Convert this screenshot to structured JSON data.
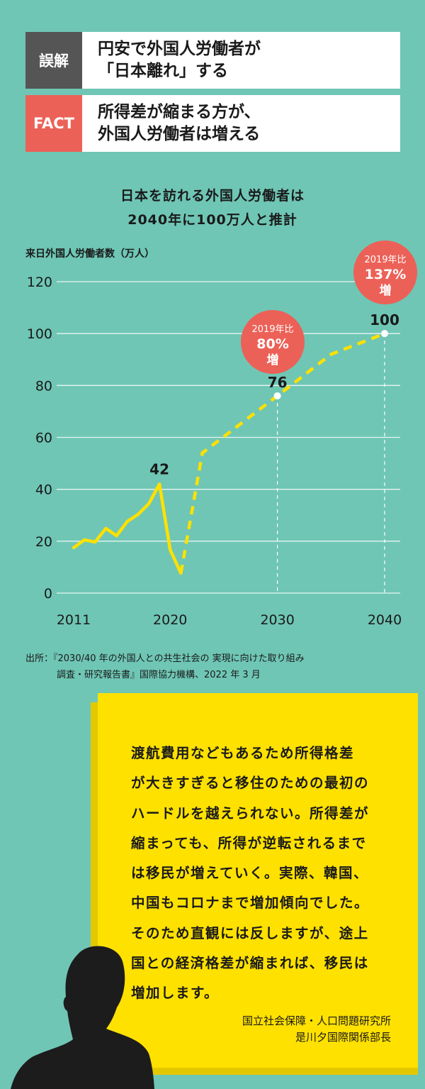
{
  "myth": {
    "tag": "誤解",
    "text1": "円安で外国人労働者が",
    "text2": "「日本離れ」する"
  },
  "fact": {
    "tag": "FACT",
    "text1": "所得差が縮まる方が、",
    "text2": "外国人労働者は増える"
  },
  "chart_data": {
    "type": "line",
    "title": [
      "日本を訪れる外国人労働者は",
      "2040年に100万人と推計"
    ],
    "ylabel": "来日外国人労働者数（万人）",
    "xlabel": "",
    "ylim": [
      0,
      120
    ],
    "xlim": [
      2011,
      2040
    ],
    "yticks": [
      "0",
      "20",
      "40",
      "60",
      "80",
      "100",
      "120"
    ],
    "xticks": [
      "2011",
      "2020",
      "2030",
      "2040"
    ],
    "grid": true,
    "series": [
      {
        "style": "solid",
        "x": [
          2011,
          2012,
          2013,
          2014,
          2015,
          2016,
          2017,
          2018,
          2019,
          2020,
          2021
        ],
        "y": [
          17.5,
          20.5,
          19.7,
          24.9,
          22.1,
          27.6,
          30.3,
          34.4,
          42,
          16.7,
          7.7
        ]
      },
      {
        "style": "dashed",
        "x": [
          2021,
          2023,
          2030,
          2035,
          2040
        ],
        "y": [
          7.7,
          54,
          76,
          92,
          100
        ]
      }
    ],
    "annotations": [
      {
        "x": 2019,
        "y": 42,
        "label": "42"
      },
      {
        "x": 2030,
        "y": 76,
        "label": "76",
        "bubble": [
          "2019年比",
          "80%",
          "増"
        ]
      },
      {
        "x": 2040,
        "y": 100,
        "label": "100",
        "bubble": [
          "2019年比",
          "137%",
          "増"
        ]
      }
    ],
    "colors": {
      "line": "#ffe100",
      "bubble": "#ec6157",
      "grid": "#e8f5f2"
    }
  },
  "source": {
    "line1": "出所：『2030/40 年の外国人との共生社会の 実現に向けた取り組み",
    "line2": "調査・研究報告書』国際協力機構、2022 年 3 月"
  },
  "quote": {
    "lines": [
      "渡航費用などもあるため所得格差",
      "が大きすぎると移住のための最初の",
      "ハードルを越えられない。所得差が",
      "縮まっても、所得が逆転されるまで",
      "は移民が増えていく。実際、韓国、",
      "中国もコロナまで増加傾向でした。",
      "そのため直観には反しますが、途上",
      "国との経済格差が縮まれば、移民は",
      "増加します。"
    ],
    "affiliation": "国立社会保障・人口問題研究所",
    "title": "是川夕国際関係部長"
  }
}
